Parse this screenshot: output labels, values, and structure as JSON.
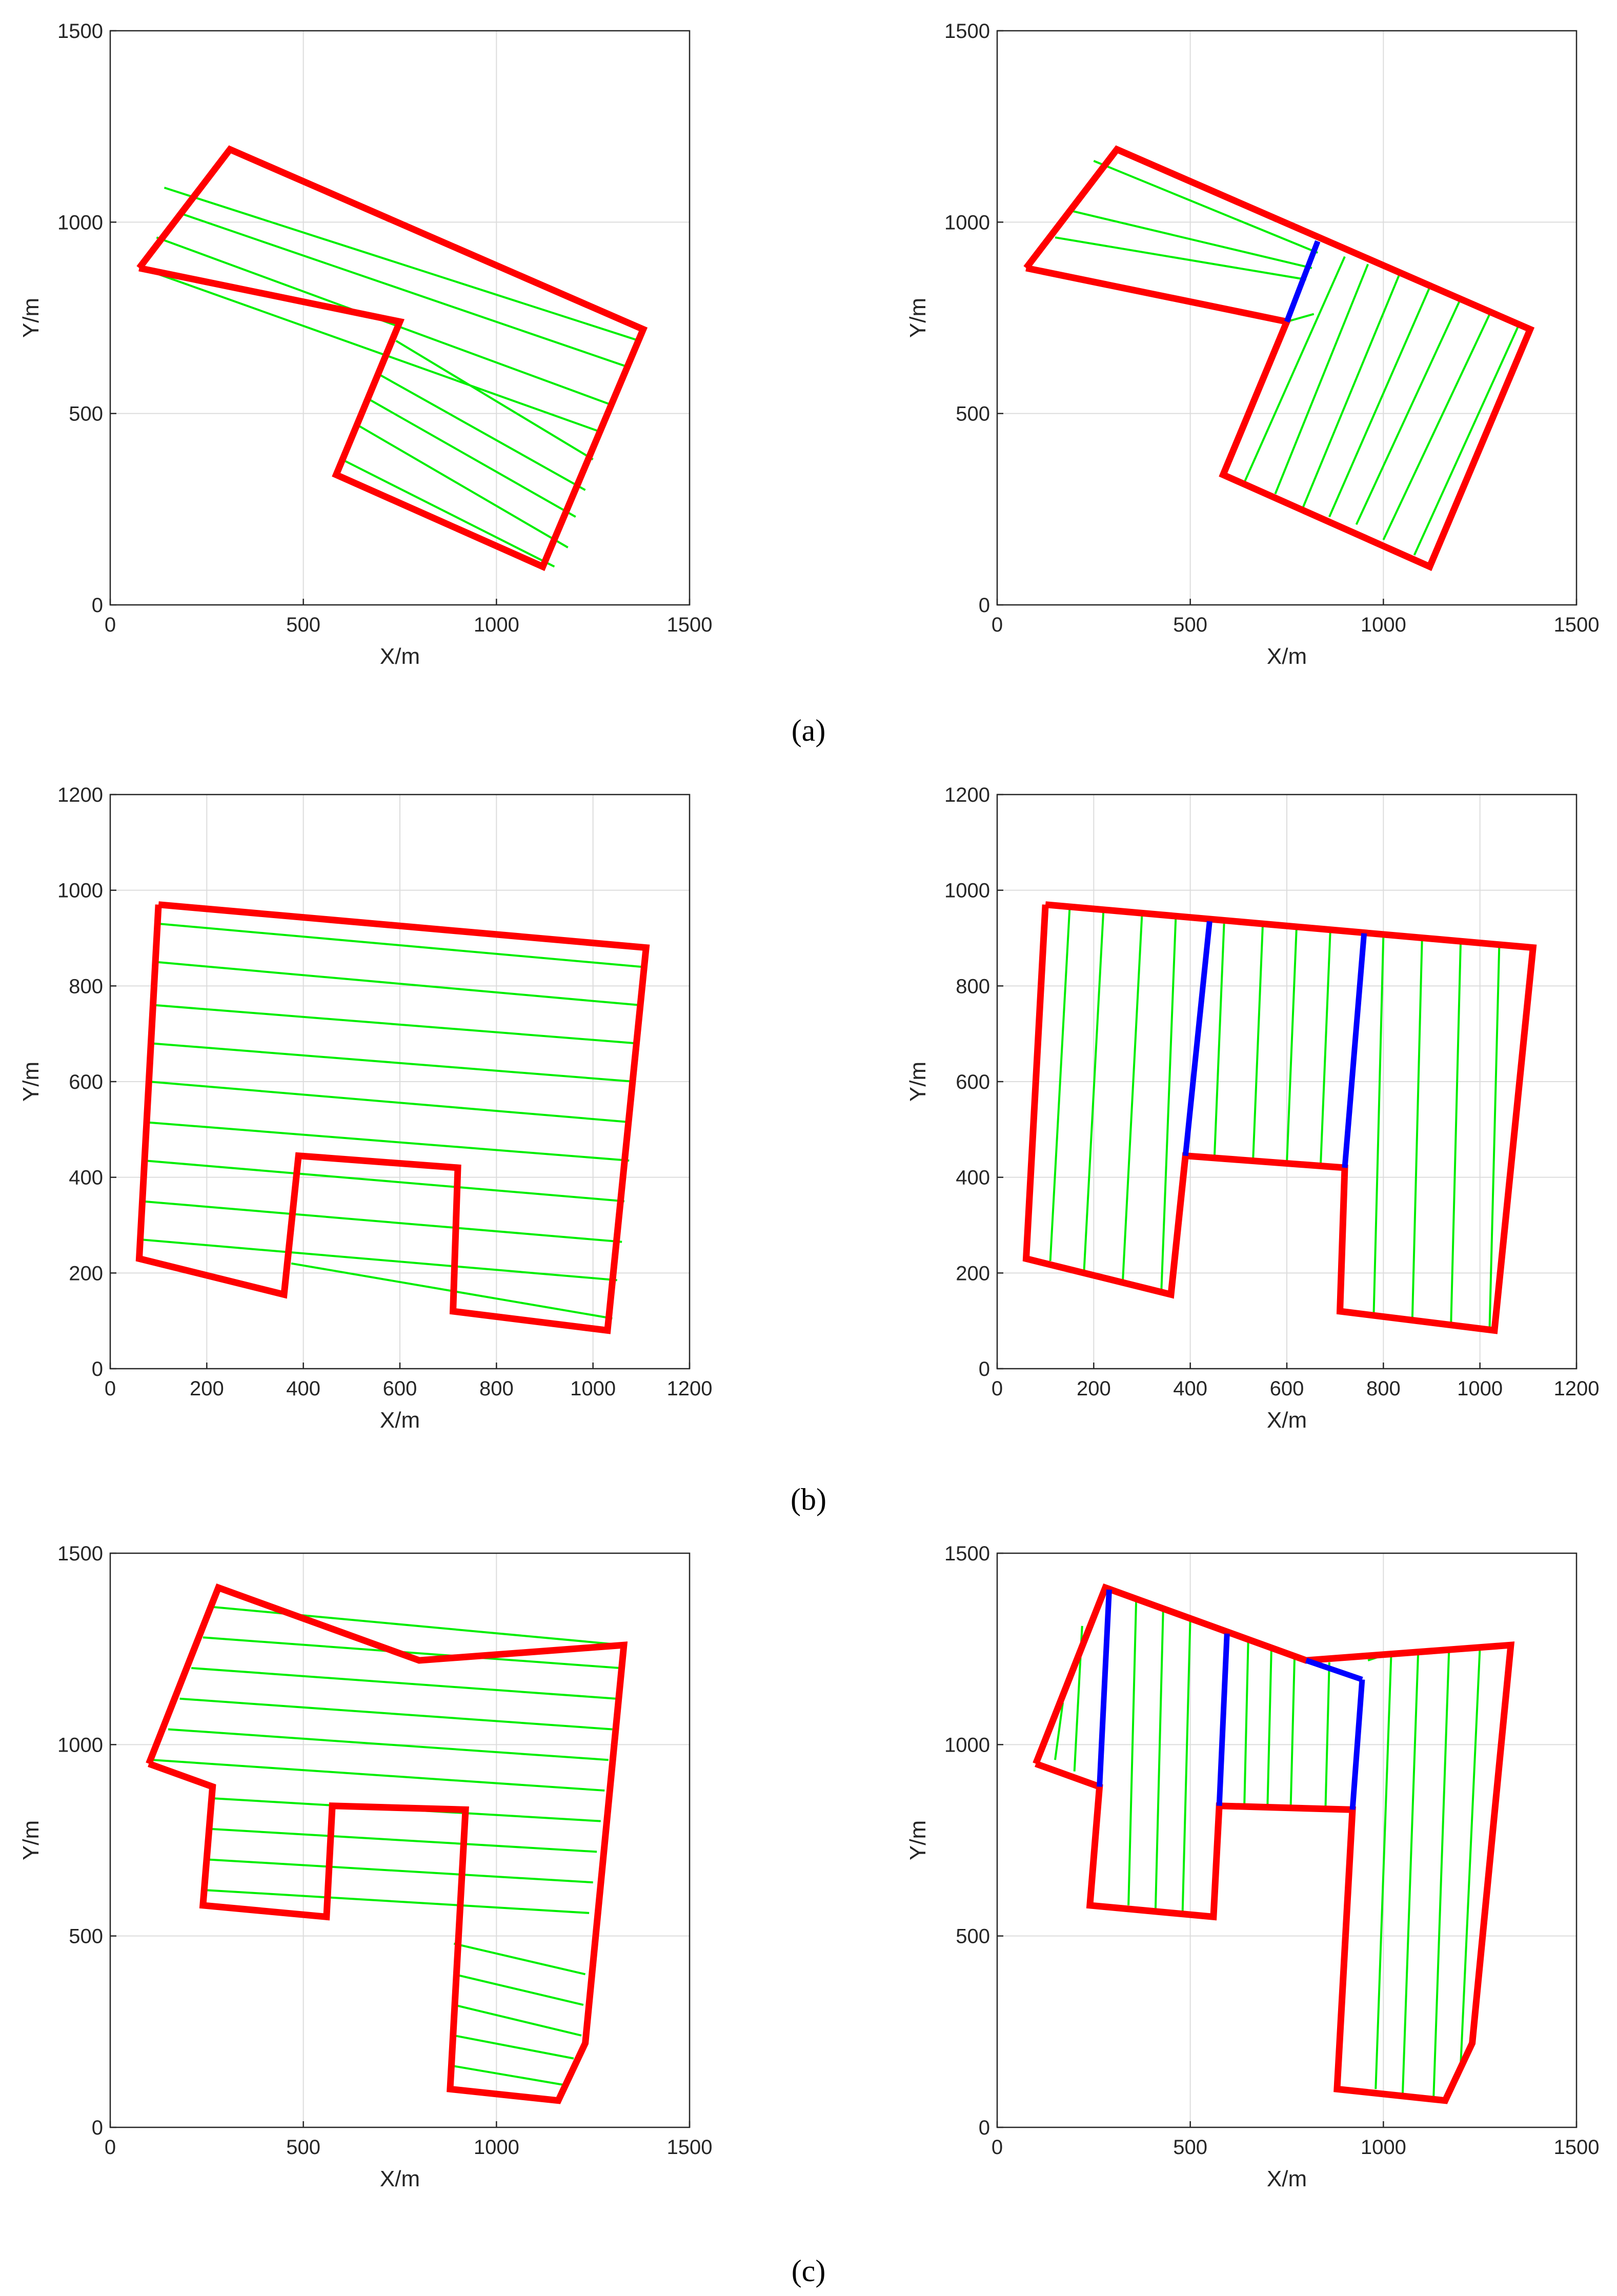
{
  "figure": {
    "captions": [
      "(a)",
      "(b)",
      "(c)"
    ]
  },
  "colors": {
    "boundary": "#ff0000",
    "sweep": "#00ee00",
    "split": "#0000ff",
    "grid": "#dcdcdc",
    "axis": "#262626"
  },
  "chart_data": [
    {
      "type": "line",
      "row": 0,
      "col": 0,
      "caption": "(a)",
      "title": "",
      "xlabel": "X/m",
      "ylabel": "Y/m",
      "xlim": [
        0,
        1500
      ],
      "ylim": [
        0,
        1500
      ],
      "xticks": [
        0,
        500,
        1000,
        1500
      ],
      "yticks": [
        0,
        500,
        1000,
        1500
      ],
      "boundaries": [
        [
          [
            75,
            880
          ],
          [
            310,
            1190
          ],
          [
            1380,
            720
          ],
          [
            1120,
            100
          ],
          [
            585,
            340
          ],
          [
            750,
            740
          ],
          [
            75,
            880
          ]
        ]
      ],
      "splits": [],
      "sweeps": [
        [
          [
            140,
            1090
          ],
          [
            1370,
            690
          ]
        ],
        [
          [
            190,
            1020
          ],
          [
            1345,
            620
          ]
        ],
        [
          [
            120,
            960
          ],
          [
            1305,
            520
          ]
        ],
        [
          [
            80,
            880
          ],
          [
            1275,
            450
          ]
        ],
        [
          [
            740,
            690
          ],
          [
            1250,
            380
          ]
        ],
        [
          [
            700,
            600
          ],
          [
            1230,
            300
          ]
        ],
        [
          [
            665,
            540
          ],
          [
            1205,
            230
          ]
        ],
        [
          [
            640,
            470
          ],
          [
            1185,
            150
          ]
        ],
        [
          [
            600,
            380
          ],
          [
            1150,
            100
          ]
        ]
      ]
    },
    {
      "type": "line",
      "row": 0,
      "col": 1,
      "caption": "(a)",
      "title": "",
      "xlabel": "X/m",
      "ylabel": "Y/m",
      "xlim": [
        0,
        1500
      ],
      "ylim": [
        0,
        1500
      ],
      "xticks": [
        0,
        500,
        1000,
        1500
      ],
      "yticks": [
        0,
        500,
        1000,
        1500
      ],
      "boundaries": [
        [
          [
            75,
            880
          ],
          [
            310,
            1190
          ],
          [
            1380,
            720
          ],
          [
            1120,
            100
          ],
          [
            585,
            340
          ],
          [
            750,
            740
          ],
          [
            510,
            790
          ],
          [
            75,
            880
          ]
        ]
      ],
      "splits": [
        [
          [
            750,
            740
          ],
          [
            830,
            950
          ]
        ]
      ],
      "sweeps": [
        [
          [
            250,
            1160
          ],
          [
            830,
            920
          ]
        ],
        [
          [
            190,
            1030
          ],
          [
            815,
            880
          ]
        ],
        [
          [
            150,
            960
          ],
          [
            800,
            850
          ]
        ],
        [
          [
            100,
            880
          ],
          [
            510,
            790
          ]
        ],
        [
          [
            820,
            760
          ],
          [
            750,
            740
          ]
        ],
        [
          [
            900,
            910
          ],
          [
            640,
            320
          ]
        ],
        [
          [
            960,
            890
          ],
          [
            720,
            290
          ]
        ],
        [
          [
            1040,
            860
          ],
          [
            790,
            250
          ]
        ],
        [
          [
            1120,
            830
          ],
          [
            860,
            230
          ]
        ],
        [
          [
            1200,
            800
          ],
          [
            930,
            210
          ]
        ],
        [
          [
            1280,
            770
          ],
          [
            1000,
            170
          ]
        ],
        [
          [
            1350,
            730
          ],
          [
            1080,
            130
          ]
        ]
      ]
    },
    {
      "type": "line",
      "row": 1,
      "col": 0,
      "caption": "(b)",
      "title": "",
      "xlabel": "X/m",
      "ylabel": "Y/m",
      "xlim": [
        0,
        1200
      ],
      "ylim": [
        0,
        1200
      ],
      "xticks": [
        0,
        200,
        400,
        600,
        800,
        1000,
        1200
      ],
      "yticks": [
        0,
        200,
        400,
        600,
        800,
        1000,
        1200
      ],
      "boundaries": [
        [
          [
            100,
            970
          ],
          [
            1110,
            880
          ],
          [
            1030,
            80
          ],
          [
            710,
            120
          ],
          [
            720,
            420
          ],
          [
            390,
            445
          ],
          [
            360,
            155
          ],
          [
            60,
            230
          ],
          [
            100,
            970
          ]
        ]
      ],
      "splits": [],
      "sweeps": [
        [
          [
            100,
            930
          ],
          [
            1100,
            840
          ]
        ],
        [
          [
            95,
            850
          ],
          [
            1095,
            760
          ]
        ],
        [
          [
            90,
            760
          ],
          [
            1090,
            680
          ]
        ],
        [
          [
            85,
            680
          ],
          [
            1085,
            600
          ]
        ],
        [
          [
            80,
            600
          ],
          [
            1080,
            515
          ]
        ],
        [
          [
            75,
            515
          ],
          [
            1075,
            435
          ]
        ],
        [
          [
            70,
            435
          ],
          [
            1065,
            350
          ]
        ],
        [
          [
            65,
            350
          ],
          [
            1060,
            265
          ]
        ],
        [
          [
            62,
            270
          ],
          [
            1050,
            185
          ]
        ],
        [
          [
            375,
            220
          ],
          [
            1040,
            105
          ]
        ]
      ]
    },
    {
      "type": "line",
      "row": 1,
      "col": 1,
      "caption": "(b)",
      "title": "",
      "xlabel": "X/m",
      "ylabel": "Y/m",
      "xlim": [
        0,
        1200
      ],
      "ylim": [
        0,
        1200
      ],
      "xticks": [
        0,
        200,
        400,
        600,
        800,
        1000,
        1200
      ],
      "yticks": [
        0,
        200,
        400,
        600,
        800,
        1000,
        1200
      ],
      "boundaries": [
        [
          [
            100,
            970
          ],
          [
            1110,
            880
          ],
          [
            1030,
            80
          ],
          [
            710,
            120
          ],
          [
            720,
            420
          ],
          [
            390,
            445
          ],
          [
            360,
            155
          ],
          [
            60,
            230
          ],
          [
            100,
            970
          ]
        ]
      ],
      "splits": [
        [
          [
            390,
            445
          ],
          [
            440,
            935
          ]
        ],
        [
          [
            720,
            420
          ],
          [
            760,
            910
          ]
        ]
      ],
      "sweeps": [
        [
          [
            150,
            960
          ],
          [
            110,
            225
          ]
        ],
        [
          [
            220,
            955
          ],
          [
            180,
            205
          ]
        ],
        [
          [
            300,
            950
          ],
          [
            260,
            180
          ]
        ],
        [
          [
            370,
            945
          ],
          [
            340,
            160
          ]
        ],
        [
          [
            470,
            930
          ],
          [
            450,
            440
          ]
        ],
        [
          [
            550,
            925
          ],
          [
            530,
            435
          ]
        ],
        [
          [
            620,
            920
          ],
          [
            600,
            430
          ]
        ],
        [
          [
            690,
            915
          ],
          [
            670,
            425
          ]
        ],
        [
          [
            800,
            905
          ],
          [
            780,
            115
          ]
        ],
        [
          [
            880,
            895
          ],
          [
            860,
            105
          ]
        ],
        [
          [
            960,
            890
          ],
          [
            940,
            90
          ]
        ],
        [
          [
            1040,
            885
          ],
          [
            1020,
            85
          ]
        ]
      ]
    },
    {
      "type": "line",
      "row": 2,
      "col": 0,
      "caption": "(c)",
      "title": "",
      "xlabel": "X/m",
      "ylabel": "Y/m",
      "xlim": [
        0,
        1500
      ],
      "ylim": [
        0,
        1500
      ],
      "xticks": [
        0,
        500,
        1000,
        1500
      ],
      "yticks": [
        0,
        500,
        1000,
        1500
      ],
      "boundaries": [
        [
          [
            100,
            950
          ],
          [
            280,
            1410
          ],
          [
            800,
            1220
          ],
          [
            1330,
            1260
          ],
          [
            1230,
            220
          ],
          [
            1160,
            70
          ],
          [
            880,
            100
          ],
          [
            920,
            830
          ],
          [
            575,
            840
          ],
          [
            560,
            550
          ],
          [
            240,
            580
          ],
          [
            265,
            890
          ],
          [
            100,
            950
          ]
        ]
      ],
      "splits": [],
      "sweeps": [
        [
          [
            260,
            1360
          ],
          [
            1330,
            1260
          ]
        ],
        [
          [
            240,
            1280
          ],
          [
            1320,
            1200
          ]
        ],
        [
          [
            210,
            1200
          ],
          [
            1310,
            1120
          ]
        ],
        [
          [
            180,
            1120
          ],
          [
            1300,
            1040
          ]
        ],
        [
          [
            150,
            1040
          ],
          [
            1290,
            960
          ]
        ],
        [
          [
            110,
            960
          ],
          [
            1280,
            880
          ]
        ],
        [
          [
            260,
            860
          ],
          [
            1270,
            800
          ]
        ],
        [
          [
            255,
            780
          ],
          [
            1260,
            720
          ]
        ],
        [
          [
            250,
            700
          ],
          [
            1250,
            640
          ]
        ],
        [
          [
            245,
            620
          ],
          [
            1240,
            560
          ]
        ],
        [
          [
            890,
            480
          ],
          [
            1230,
            400
          ]
        ],
        [
          [
            890,
            400
          ],
          [
            1225,
            320
          ]
        ],
        [
          [
            890,
            320
          ],
          [
            1220,
            240
          ]
        ],
        [
          [
            890,
            240
          ],
          [
            1200,
            180
          ]
        ],
        [
          [
            890,
            160
          ],
          [
            1180,
            110
          ]
        ]
      ]
    },
    {
      "type": "line",
      "row": 2,
      "col": 1,
      "caption": "(c)",
      "title": "",
      "xlabel": "X/m",
      "ylabel": "Y/m",
      "xlim": [
        0,
        1500
      ],
      "ylim": [
        0,
        1500
      ],
      "xticks": [
        0,
        500,
        1000,
        1500
      ],
      "yticks": [
        0,
        500,
        1000,
        1500
      ],
      "boundaries": [
        [
          [
            100,
            950
          ],
          [
            280,
            1410
          ],
          [
            800,
            1220
          ],
          [
            1330,
            1260
          ],
          [
            1230,
            220
          ],
          [
            1160,
            70
          ],
          [
            880,
            100
          ],
          [
            920,
            830
          ],
          [
            575,
            840
          ],
          [
            560,
            550
          ],
          [
            240,
            580
          ],
          [
            265,
            890
          ],
          [
            100,
            950
          ]
        ]
      ],
      "splits": [
        [
          [
            265,
            890
          ],
          [
            290,
            1405
          ]
        ],
        [
          [
            575,
            840
          ],
          [
            595,
            1290
          ]
        ],
        [
          [
            920,
            830
          ],
          [
            945,
            1170
          ]
        ],
        [
          [
            800,
            1220
          ],
          [
            945,
            1170
          ]
        ]
      ],
      "sweeps": [
        [
          [
            170,
            1110
          ],
          [
            150,
            960
          ]
        ],
        [
          [
            220,
            1310
          ],
          [
            200,
            930
          ]
        ],
        [
          [
            360,
            1380
          ],
          [
            340,
            580
          ]
        ],
        [
          [
            430,
            1360
          ],
          [
            410,
            570
          ]
        ],
        [
          [
            500,
            1330
          ],
          [
            480,
            560
          ]
        ],
        [
          [
            650,
            1270
          ],
          [
            640,
            840
          ]
        ],
        [
          [
            710,
            1250
          ],
          [
            700,
            840
          ]
        ],
        [
          [
            770,
            1230
          ],
          [
            760,
            835
          ]
        ],
        [
          [
            860,
            1215
          ],
          [
            850,
            830
          ]
        ],
        [
          [
            1020,
            1230
          ],
          [
            980,
            100
          ]
        ],
        [
          [
            1090,
            1240
          ],
          [
            1050,
            90
          ]
        ],
        [
          [
            1170,
            1250
          ],
          [
            1130,
            80
          ]
        ],
        [
          [
            1250,
            1255
          ],
          [
            1200,
            160
          ]
        ],
        [
          [
            960,
            1220
          ],
          [
            1020,
            1240
          ]
        ]
      ]
    }
  ]
}
